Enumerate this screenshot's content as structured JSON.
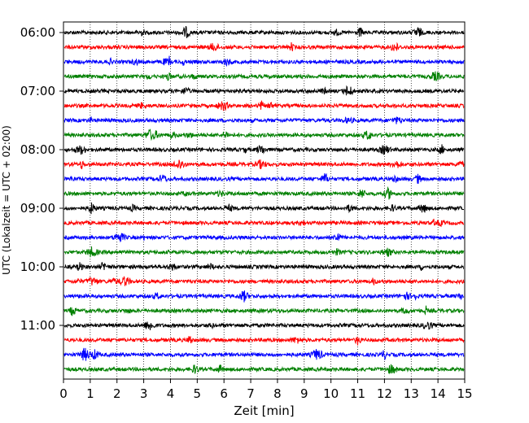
{
  "chart_data": {
    "type": "line",
    "xlabel": "Zeit  [min]",
    "ylabel": "UTC (Lokalzeit = UTC + 02:00)",
    "xlim": [
      0,
      15
    ],
    "xticks": [
      0,
      1,
      2,
      3,
      4,
      5,
      6,
      7,
      8,
      9,
      10,
      11,
      12,
      13,
      14,
      15
    ],
    "y_tick_labels": [
      "06:00",
      "07:00",
      "08:00",
      "09:00",
      "10:00",
      "11:00"
    ],
    "trace_interval_minutes": 15,
    "first_trace": "06:00",
    "trace_count": 24,
    "grid": "vertical dotted",
    "series_colors": [
      "#000000",
      "#ff0000",
      "#0000ff",
      "#008000"
    ],
    "traces": [
      {
        "start": "06:00",
        "color": "#000000"
      },
      {
        "start": "06:15",
        "color": "#ff0000"
      },
      {
        "start": "06:30",
        "color": "#0000ff"
      },
      {
        "start": "06:45",
        "color": "#008000"
      },
      {
        "start": "07:00",
        "color": "#000000"
      },
      {
        "start": "07:15",
        "color": "#ff0000"
      },
      {
        "start": "07:30",
        "color": "#0000ff"
      },
      {
        "start": "07:45",
        "color": "#008000"
      },
      {
        "start": "08:00",
        "color": "#000000"
      },
      {
        "start": "08:15",
        "color": "#ff0000"
      },
      {
        "start": "08:30",
        "color": "#0000ff"
      },
      {
        "start": "08:45",
        "color": "#008000"
      },
      {
        "start": "09:00",
        "color": "#000000"
      },
      {
        "start": "09:15",
        "color": "#ff0000"
      },
      {
        "start": "09:30",
        "color": "#0000ff"
      },
      {
        "start": "09:45",
        "color": "#008000"
      },
      {
        "start": "10:00",
        "color": "#000000"
      },
      {
        "start": "10:15",
        "color": "#ff0000"
      },
      {
        "start": "10:30",
        "color": "#0000ff"
      },
      {
        "start": "10:45",
        "color": "#008000"
      },
      {
        "start": "11:00",
        "color": "#000000"
      },
      {
        "start": "11:15",
        "color": "#ff0000"
      },
      {
        "start": "11:30",
        "color": "#0000ff"
      },
      {
        "start": "11:45",
        "color": "#008000"
      }
    ]
  }
}
